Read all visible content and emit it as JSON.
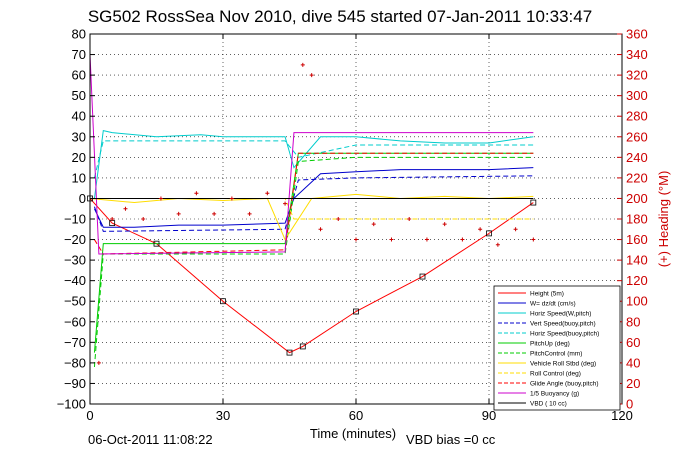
{
  "chart_data": {
    "type": "line",
    "title": "SG502 RossSea Nov 2010, dive 545 started 07-Jan-2011 10:33:47",
    "xlabel": "Time (minutes)",
    "ylabel_right": "(+) Heading (°M)",
    "footer_date": "06-Oct-2011 11:08:22",
    "footer_note": "VBD bias =0 cc",
    "xlim": [
      0,
      120
    ],
    "ylim": [
      -100,
      80
    ],
    "y2lim": [
      0,
      360
    ],
    "x_ticks": [
      "0",
      "30",
      "60",
      "90",
      "120"
    ],
    "y_ticks": [
      "80",
      "70",
      "60",
      "50",
      "40",
      "30",
      "20",
      "10",
      "0",
      "−10",
      "−20",
      "−30",
      "−40",
      "−50",
      "−60",
      "−70",
      "−80",
      "−90",
      "−100"
    ],
    "y2_ticks": [
      "360",
      "340",
      "320",
      "300",
      "280",
      "260",
      "240",
      "220",
      "200",
      "180",
      "160",
      "140",
      "120",
      "100",
      "80",
      "60",
      "40",
      "20",
      "0"
    ],
    "grid": true,
    "legend_position": "bottom-right",
    "series": [
      {
        "name": "Height (5m)",
        "color": "#ff0000",
        "style": "solid",
        "x": [
          0,
          5,
          15,
          30,
          45,
          48,
          60,
          75,
          90,
          100
        ],
        "y": [
          0,
          -12,
          -22,
          -50,
          -75,
          -72,
          -55,
          -38,
          -17,
          -2
        ]
      },
      {
        "name": "W= dz/dt (cm/s)",
        "color": "#0000cc",
        "style": "solid",
        "x": [
          1,
          3,
          10,
          20,
          30,
          44,
          46,
          52,
          60,
          70,
          80,
          90,
          100
        ],
        "y": [
          -5,
          -14,
          -14,
          -13,
          -13,
          -12,
          0,
          12,
          13,
          14,
          14,
          14,
          15
        ]
      },
      {
        "name": "Horiz Speed(W,pitch)",
        "color": "#00cccc",
        "style": "solid",
        "x": [
          1,
          3,
          5,
          15,
          25,
          30,
          44,
          46,
          52,
          60,
          70,
          80,
          90,
          100
        ],
        "y": [
          0,
          33,
          32,
          30,
          31,
          30,
          30,
          15,
          30,
          30,
          28,
          27,
          27,
          30
        ]
      },
      {
        "name": "Vert Speed(buoy,pitch)",
        "color": "#0000cc",
        "style": "dashed",
        "x": [
          1,
          3,
          44,
          47,
          60,
          100
        ],
        "y": [
          -4,
          -16,
          -15,
          9,
          10,
          11
        ]
      },
      {
        "name": "Horiz Speed(buoy,pitch)",
        "color": "#00cccc",
        "style": "dashed",
        "x": [
          1,
          3,
          44,
          47,
          60,
          100
        ],
        "y": [
          10,
          28,
          28,
          20,
          26,
          26
        ]
      },
      {
        "name": "PitchUp (deg)",
        "color": "#00cc00",
        "style": "solid",
        "x": [
          1,
          3,
          44,
          47,
          60,
          100
        ],
        "y": [
          -75,
          -22,
          -22,
          22,
          22,
          22
        ]
      },
      {
        "name": "PitchControl (mm)",
        "color": "#00cc00",
        "style": "dashed",
        "x": [
          1,
          3,
          44,
          47,
          60,
          100
        ],
        "y": [
          -82,
          -27,
          -27,
          18,
          20,
          20
        ]
      },
      {
        "name": "Vehicle Roll Stbd (deg)",
        "color": "#ffdd00",
        "style": "solid",
        "x": [
          0,
          10,
          20,
          30,
          40,
          44,
          50,
          60,
          70,
          80,
          90,
          100
        ],
        "y": [
          0,
          -2,
          0,
          -1,
          0,
          -20,
          0,
          2,
          0,
          1,
          0,
          1
        ]
      },
      {
        "name": "Roll Control (deg)",
        "color": "#ffdd00",
        "style": "dashed",
        "x": [
          0,
          44,
          46,
          100
        ],
        "y": [
          0,
          0,
          -10,
          -10
        ]
      },
      {
        "name": "Glide Angle (buoy,pitch)",
        "color": "#ff0000",
        "style": "dashed",
        "x": [
          1,
          3,
          44,
          47,
          100
        ],
        "y": [
          -20,
          -27,
          -25,
          22,
          22
        ]
      },
      {
        "name": "1/5 Buoyancy (g)",
        "color": "#cc00cc",
        "style": "solid",
        "x": [
          0,
          2,
          44,
          46,
          100
        ],
        "y": [
          70,
          -27,
          -26,
          32,
          32
        ]
      },
      {
        "name": "VBD ( 10 cc)",
        "color": "#000000",
        "style": "solid",
        "x": [
          0,
          3,
          44,
          46,
          100
        ],
        "y": [
          0,
          0,
          0,
          0,
          0
        ]
      }
    ],
    "heading_series": {
      "name": "(+) Heading (°M)",
      "color": "#cc0000",
      "style": "markers",
      "axis": "right",
      "x": [
        2,
        5,
        8,
        12,
        16,
        20,
        24,
        28,
        32,
        36,
        40,
        44,
        48,
        50,
        52,
        56,
        60,
        64,
        68,
        72,
        76,
        80,
        84,
        88,
        92,
        96,
        100
      ],
      "y": [
        40,
        180,
        190,
        180,
        200,
        185,
        205,
        185,
        200,
        185,
        205,
        195,
        330,
        320,
        170,
        180,
        160,
        175,
        160,
        180,
        160,
        175,
        160,
        170,
        155,
        170,
        160
      ]
    }
  }
}
